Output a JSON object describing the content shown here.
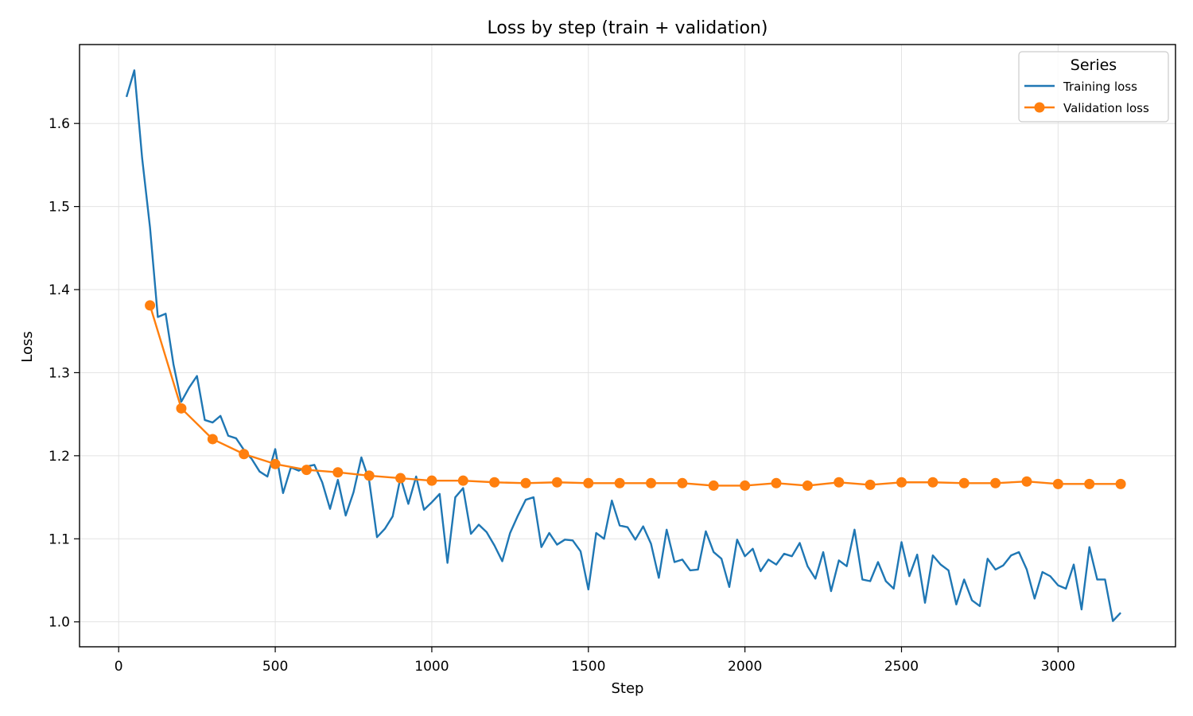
{
  "chart_data": {
    "type": "line",
    "title": "Loss by step (train + validation)",
    "xlabel": "Step",
    "ylabel": "Loss",
    "xlim": [
      -125,
      3375
    ],
    "ylim": [
      0.97,
      1.695
    ],
    "xticks": [
      0,
      500,
      1000,
      1500,
      2000,
      2500,
      3000
    ],
    "yticks": [
      1.0,
      1.1,
      1.2,
      1.3,
      1.4,
      1.5,
      1.6
    ],
    "xtick_labels": [
      "0",
      "500",
      "1000",
      "1500",
      "2000",
      "2500",
      "3000"
    ],
    "ytick_labels": [
      "1.0",
      "1.1",
      "1.2",
      "1.3",
      "1.4",
      "1.5",
      "1.6"
    ],
    "grid": true,
    "legend": {
      "title": "Series",
      "position": "top-right"
    },
    "series": [
      {
        "name": "Training loss",
        "color": "#1f77b4",
        "marker": "none",
        "x": [
          25,
          50,
          75,
          100,
          125,
          150,
          175,
          200,
          225,
          250,
          275,
          300,
          325,
          350,
          375,
          400,
          425,
          450,
          475,
          500,
          525,
          550,
          575,
          600,
          625,
          650,
          675,
          700,
          725,
          750,
          775,
          800,
          825,
          850,
          875,
          900,
          925,
          950,
          975,
          1000,
          1025,
          1050,
          1075,
          1100,
          1125,
          1150,
          1175,
          1200,
          1225,
          1250,
          1275,
          1300,
          1325,
          1350,
          1375,
          1400,
          1425,
          1450,
          1475,
          1500,
          1525,
          1550,
          1575,
          1600,
          1625,
          1650,
          1675,
          1700,
          1725,
          1750,
          1775,
          1800,
          1825,
          1850,
          1875,
          1900,
          1925,
          1950,
          1975,
          2000,
          2025,
          2050,
          2075,
          2100,
          2125,
          2150,
          2175,
          2200,
          2225,
          2250,
          2275,
          2300,
          2325,
          2350,
          2375,
          2400,
          2425,
          2450,
          2475,
          2500,
          2525,
          2550,
          2575,
          2600,
          2625,
          2650,
          2675,
          2700,
          2725,
          2750,
          2775,
          2800,
          2825,
          2850,
          2875,
          2900,
          2925,
          2950,
          2975,
          3000,
          3025,
          3050,
          3075,
          3100,
          3125,
          3150,
          3175,
          3200
        ],
        "y": [
          1.632,
          1.664,
          1.558,
          1.475,
          1.367,
          1.371,
          1.31,
          1.265,
          1.282,
          1.296,
          1.243,
          1.24,
          1.248,
          1.224,
          1.221,
          1.207,
          1.196,
          1.181,
          1.175,
          1.208,
          1.155,
          1.186,
          1.182,
          1.187,
          1.189,
          1.168,
          1.136,
          1.171,
          1.128,
          1.156,
          1.198,
          1.17,
          1.102,
          1.112,
          1.127,
          1.174,
          1.142,
          1.175,
          1.135,
          1.144,
          1.154,
          1.071,
          1.15,
          1.161,
          1.106,
          1.117,
          1.108,
          1.092,
          1.073,
          1.107,
          1.128,
          1.147,
          1.15,
          1.09,
          1.107,
          1.093,
          1.099,
          1.098,
          1.085,
          1.039,
          1.107,
          1.1,
          1.146,
          1.116,
          1.114,
          1.099,
          1.115,
          1.094,
          1.053,
          1.111,
          1.072,
          1.075,
          1.062,
          1.063,
          1.109,
          1.084,
          1.076,
          1.042,
          1.099,
          1.079,
          1.088,
          1.061,
          1.075,
          1.069,
          1.082,
          1.079,
          1.095,
          1.067,
          1.052,
          1.084,
          1.037,
          1.074,
          1.067,
          1.111,
          1.051,
          1.049,
          1.072,
          1.049,
          1.04,
          1.096,
          1.055,
          1.081,
          1.023,
          1.08,
          1.069,
          1.062,
          1.021,
          1.051,
          1.026,
          1.019,
          1.076,
          1.063,
          1.068,
          1.08,
          1.084,
          1.063,
          1.028,
          1.06,
          1.055,
          1.044,
          1.04,
          1.069,
          1.015,
          1.09,
          1.051,
          1.051,
          1.001,
          1.011
        ]
      },
      {
        "name": "Validation loss",
        "color": "#ff7f0e",
        "marker": "circle",
        "x": [
          100,
          200,
          300,
          400,
          500,
          600,
          700,
          800,
          900,
          1000,
          1100,
          1200,
          1300,
          1400,
          1500,
          1600,
          1700,
          1800,
          1900,
          2000,
          2100,
          2200,
          2300,
          2400,
          2500,
          2600,
          2700,
          2800,
          2900,
          3000,
          3100,
          3200
        ],
        "y": [
          1.381,
          1.257,
          1.22,
          1.202,
          1.19,
          1.183,
          1.18,
          1.176,
          1.173,
          1.17,
          1.17,
          1.168,
          1.167,
          1.168,
          1.167,
          1.167,
          1.167,
          1.167,
          1.164,
          1.164,
          1.167,
          1.164,
          1.168,
          1.165,
          1.168,
          1.168,
          1.167,
          1.167,
          1.169,
          1.166,
          1.166,
          1.166
        ]
      }
    ]
  }
}
